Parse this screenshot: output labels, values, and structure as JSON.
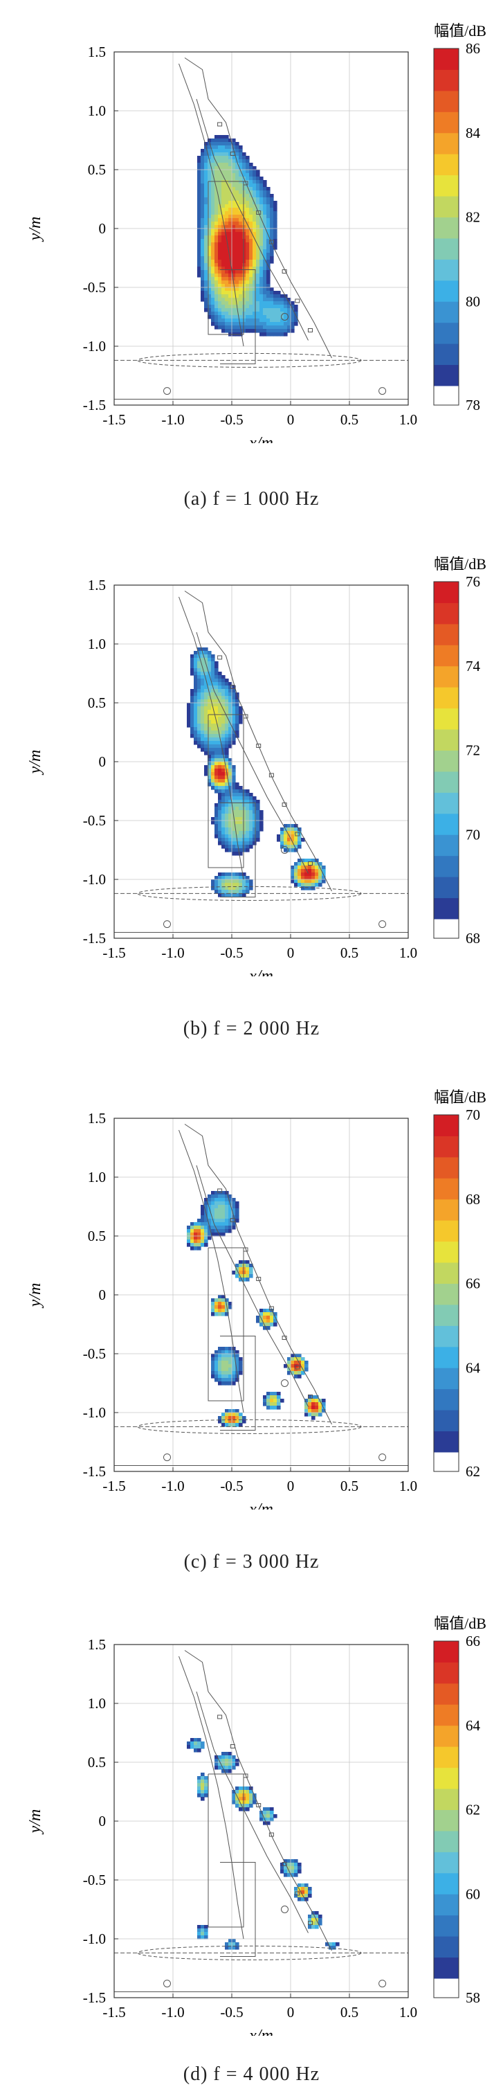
{
  "panels": [
    {
      "caption": "(a) f = 1 000 Hz"
    },
    {
      "caption": "(b) f = 2 000 Hz"
    },
    {
      "caption": "(c) f = 3 000 Hz"
    },
    {
      "caption": "(d) f = 4 000 Hz"
    }
  ],
  "chart_data": [
    {
      "type": "heatmap",
      "title": "",
      "xlabel": "x/m",
      "ylabel": "y/m",
      "xlim": [
        -1.5,
        1.0
      ],
      "ylim": [
        -1.5,
        1.5
      ],
      "xticks": [
        -1.5,
        -1.0,
        -0.5,
        0,
        0.5,
        1.0
      ],
      "yticks": [
        -1.5,
        -1.0,
        -0.5,
        0,
        0.5,
        1.0,
        1.5
      ],
      "colorbar": {
        "label": "幅值/dB",
        "min": 78,
        "max": 86,
        "ticks": [
          78,
          80,
          82,
          84,
          86
        ]
      },
      "grid": true,
      "sources": [
        {
          "x": -0.5,
          "y": -0.2,
          "level": 85.6,
          "sx": 0.22,
          "sy": 0.3
        },
        {
          "x": -0.45,
          "y": 0.05,
          "level": 82.5,
          "sx": 0.45,
          "sy": 0.6
        },
        {
          "x": -0.5,
          "y": -0.55,
          "level": 81.5,
          "sx": 0.35,
          "sy": 0.5
        },
        {
          "x": -0.6,
          "y": 0.55,
          "level": 80.0,
          "sx": 0.3,
          "sy": 0.4
        },
        {
          "x": -0.1,
          "y": -0.75,
          "level": 80.0,
          "sx": 0.3,
          "sy": 0.3
        }
      ]
    },
    {
      "type": "heatmap",
      "title": "",
      "xlabel": "x/m",
      "ylabel": "y/m",
      "xlim": [
        -1.5,
        1.0
      ],
      "ylim": [
        -1.5,
        1.5
      ],
      "xticks": [
        -1.5,
        -1.0,
        -0.5,
        0,
        0.5,
        1.0
      ],
      "yticks": [
        -1.5,
        -1.0,
        -0.5,
        0,
        0.5,
        1.0,
        1.5
      ],
      "colorbar": {
        "label": "幅值/dB",
        "min": 68,
        "max": 76,
        "ticks": [
          68,
          70,
          72,
          74,
          76
        ]
      },
      "grid": true,
      "sources": [
        {
          "x": -0.6,
          "y": -0.1,
          "level": 75.5,
          "sx": 0.12,
          "sy": 0.14
        },
        {
          "x": 0.15,
          "y": -0.95,
          "level": 75.7,
          "sx": 0.16,
          "sy": 0.14
        },
        {
          "x": 0.0,
          "y": -0.65,
          "level": 74.0,
          "sx": 0.12,
          "sy": 0.14
        },
        {
          "x": -0.65,
          "y": 0.4,
          "level": 72.5,
          "sx": 0.3,
          "sy": 0.45
        },
        {
          "x": -0.45,
          "y": -0.5,
          "level": 71.8,
          "sx": 0.3,
          "sy": 0.4
        },
        {
          "x": -0.5,
          "y": -1.05,
          "level": 72.0,
          "sx": 0.25,
          "sy": 0.15
        },
        {
          "x": -0.75,
          "y": 0.85,
          "level": 70.5,
          "sx": 0.15,
          "sy": 0.2
        }
      ]
    },
    {
      "type": "heatmap",
      "title": "",
      "xlabel": "x/m",
      "ylabel": "y/m",
      "xlim": [
        -1.5,
        1.0
      ],
      "ylim": [
        -1.5,
        1.5
      ],
      "xticks": [
        -1.5,
        -1.0,
        -0.5,
        0,
        0.5,
        1.0
      ],
      "yticks": [
        -1.5,
        -1.0,
        -0.5,
        0,
        0.5,
        1.0,
        1.5
      ],
      "colorbar": {
        "label": "幅值/dB",
        "min": 62,
        "max": 70,
        "ticks": [
          62,
          64,
          66,
          68,
          70
        ]
      },
      "grid": true,
      "sources": [
        {
          "x": -0.8,
          "y": 0.5,
          "level": 69.0,
          "sx": 0.1,
          "sy": 0.12
        },
        {
          "x": -0.4,
          "y": 0.2,
          "level": 68.0,
          "sx": 0.1,
          "sy": 0.1
        },
        {
          "x": -0.6,
          "y": -0.1,
          "level": 68.5,
          "sx": 0.1,
          "sy": 0.1
        },
        {
          "x": -0.2,
          "y": -0.2,
          "level": 68.0,
          "sx": 0.1,
          "sy": 0.1
        },
        {
          "x": 0.05,
          "y": -0.6,
          "level": 69.5,
          "sx": 0.1,
          "sy": 0.1
        },
        {
          "x": 0.2,
          "y": -0.95,
          "level": 69.5,
          "sx": 0.1,
          "sy": 0.1
        },
        {
          "x": -0.5,
          "y": -1.05,
          "level": 69.0,
          "sx": 0.12,
          "sy": 0.08
        },
        {
          "x": -0.15,
          "y": -0.9,
          "level": 67.0,
          "sx": 0.1,
          "sy": 0.1
        },
        {
          "x": -0.55,
          "y": -0.6,
          "level": 65.5,
          "sx": 0.2,
          "sy": 0.25
        },
        {
          "x": -0.6,
          "y": 0.7,
          "level": 65.0,
          "sx": 0.25,
          "sy": 0.3
        }
      ]
    },
    {
      "type": "heatmap",
      "title": "",
      "xlabel": "x/m",
      "ylabel": "y/m",
      "xlim": [
        -1.5,
        1.0
      ],
      "ylim": [
        -1.5,
        1.5
      ],
      "xticks": [
        -1.5,
        -1.0,
        -0.5,
        0,
        0.5,
        1.0
      ],
      "yticks": [
        -1.5,
        -1.0,
        -0.5,
        0,
        0.5,
        1.0,
        1.5
      ],
      "colorbar": {
        "label": "幅值/dB",
        "min": 58,
        "max": 66,
        "ticks": [
          58,
          60,
          62,
          64,
          66
        ]
      },
      "grid": true,
      "sources": [
        {
          "x": -0.4,
          "y": 0.2,
          "level": 64.0,
          "sx": 0.12,
          "sy": 0.12
        },
        {
          "x": -0.75,
          "y": 0.3,
          "level": 62.0,
          "sx": 0.08,
          "sy": 0.15
        },
        {
          "x": -0.55,
          "y": 0.5,
          "level": 61.5,
          "sx": 0.15,
          "sy": 0.12
        },
        {
          "x": -0.8,
          "y": 0.65,
          "level": 61.0,
          "sx": 0.12,
          "sy": 0.08
        },
        {
          "x": -0.2,
          "y": 0.05,
          "level": 61.5,
          "sx": 0.1,
          "sy": 0.1
        },
        {
          "x": 0.1,
          "y": -0.6,
          "level": 64.5,
          "sx": 0.08,
          "sy": 0.08
        },
        {
          "x": 0.2,
          "y": -0.85,
          "level": 62.5,
          "sx": 0.08,
          "sy": 0.1
        },
        {
          "x": 0.0,
          "y": -0.4,
          "level": 61.5,
          "sx": 0.12,
          "sy": 0.12
        },
        {
          "x": -0.75,
          "y": -0.95,
          "level": 61.0,
          "sx": 0.08,
          "sy": 0.1
        },
        {
          "x": -0.5,
          "y": -1.05,
          "level": 60.5,
          "sx": 0.1,
          "sy": 0.08
        },
        {
          "x": 0.35,
          "y": -1.05,
          "level": 60.5,
          "sx": 0.08,
          "sy": 0.06
        }
      ]
    }
  ]
}
